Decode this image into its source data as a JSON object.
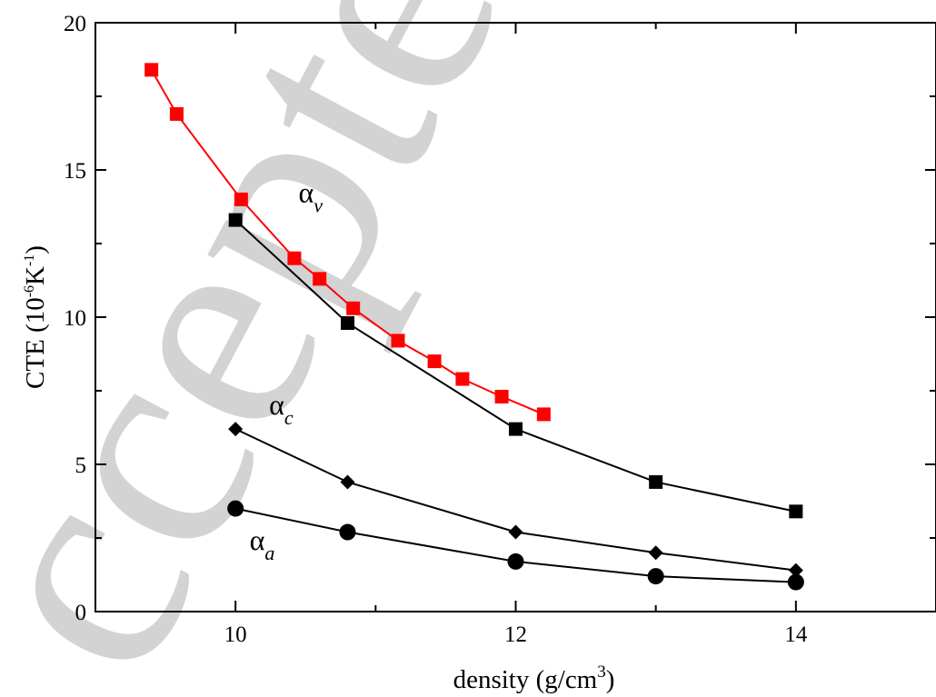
{
  "watermark": {
    "text": "ccepted M"
  },
  "chart_data": {
    "type": "line",
    "xlabel_main": "density (g/cm",
    "xlabel_sup": "3",
    "xlabel_end": ")",
    "ylabel_parts": [
      "CTE (10",
      "-6",
      "K",
      "-1",
      ")"
    ],
    "xlim": [
      9.0,
      15.0
    ],
    "ylim": [
      0,
      20
    ],
    "x_ticks": [
      10,
      12,
      14
    ],
    "y_ticks": [
      0,
      5,
      10,
      15,
      20
    ],
    "x_minor_ticks": [
      11,
      13
    ],
    "y_minor_ticks": [
      2.5,
      7.5,
      12.5,
      17.5
    ],
    "grid": false,
    "series": [
      {
        "label_symbol": "α",
        "label_sub": "v",
        "label_anchor": [
          10.45,
          13.9
        ],
        "color": "#ff0000",
        "marker": "square",
        "x": [
          9.4,
          9.58,
          10.04,
          10.42,
          10.6,
          10.84,
          11.16,
          11.42,
          11.62,
          11.9,
          12.2
        ],
        "y": [
          18.4,
          16.9,
          14.0,
          12.0,
          11.3,
          10.3,
          9.2,
          8.5,
          7.9,
          7.3,
          6.7
        ]
      },
      {
        "color": "#000000",
        "marker": "square",
        "x": [
          10,
          10.8,
          12,
          13,
          14
        ],
        "y": [
          13.3,
          9.8,
          6.2,
          4.4,
          3.4
        ]
      },
      {
        "label_symbol": "α",
        "label_sub": "c",
        "label_anchor": [
          10.24,
          6.7
        ],
        "color": "#000000",
        "marker": "diamond",
        "x": [
          10,
          10.8,
          12,
          13,
          14
        ],
        "y": [
          6.2,
          4.4,
          2.7,
          2.0,
          1.4
        ]
      },
      {
        "label_symbol": "α",
        "label_sub": "a",
        "label_anchor": [
          10.1,
          2.1
        ],
        "color": "#000000",
        "marker": "circle",
        "x": [
          10,
          10.8,
          12,
          13,
          14
        ],
        "y": [
          3.5,
          2.7,
          1.7,
          1.2,
          1.0
        ]
      }
    ]
  }
}
